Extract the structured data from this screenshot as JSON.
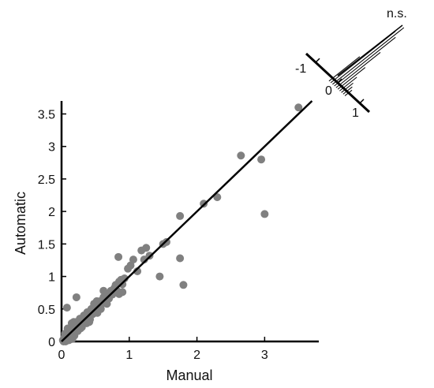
{
  "chart_data": {
    "type": "scatter",
    "title": "",
    "xlabel": "Manual",
    "ylabel": "Automatic",
    "xlim": [
      0,
      3.8
    ],
    "ylim": [
      0,
      3.7
    ],
    "xticks": [
      0,
      1,
      2,
      3
    ],
    "xtick_labels": [
      "0",
      "1",
      "2",
      "3"
    ],
    "yticks": [
      0,
      0.5,
      1,
      1.5,
      2,
      2.5,
      3,
      3.5
    ],
    "ytick_labels": [
      "0",
      "0.5",
      "1",
      "1.5",
      "2",
      "2.5",
      "3",
      "3.5"
    ],
    "grid": false,
    "point_color": "#808080",
    "line_color": "#000000",
    "fit_line": {
      "x": [
        0,
        3.7
      ],
      "y": [
        0,
        3.7
      ]
    },
    "points": [
      [
        0.02,
        0.02
      ],
      [
        0.04,
        0.06
      ],
      [
        0.06,
        0.03
      ],
      [
        0.05,
        0.12
      ],
      [
        0.08,
        0.08
      ],
      [
        0.1,
        0.15
      ],
      [
        0.12,
        0.05
      ],
      [
        0.09,
        0.2
      ],
      [
        0.14,
        0.12
      ],
      [
        0.15,
        0.28
      ],
      [
        0.17,
        0.18
      ],
      [
        0.19,
        0.09
      ],
      [
        0.2,
        0.22
      ],
      [
        0.22,
        0.3
      ],
      [
        0.24,
        0.16
      ],
      [
        0.25,
        0.25
      ],
      [
        0.27,
        0.35
      ],
      [
        0.28,
        0.2
      ],
      [
        0.3,
        0.32
      ],
      [
        0.32,
        0.27
      ],
      [
        0.33,
        0.4
      ],
      [
        0.35,
        0.33
      ],
      [
        0.37,
        0.28
      ],
      [
        0.38,
        0.45
      ],
      [
        0.4,
        0.38
      ],
      [
        0.42,
        0.34
      ],
      [
        0.44,
        0.5
      ],
      [
        0.46,
        0.42
      ],
      [
        0.48,
        0.58
      ],
      [
        0.5,
        0.47
      ],
      [
        0.52,
        0.55
      ],
      [
        0.55,
        0.52
      ],
      [
        0.57,
        0.62
      ],
      [
        0.6,
        0.58
      ],
      [
        0.62,
        0.68
      ],
      [
        0.65,
        0.63
      ],
      [
        0.68,
        0.72
      ],
      [
        0.7,
        0.66
      ],
      [
        0.73,
        0.78
      ],
      [
        0.75,
        0.74
      ],
      [
        0.78,
        0.82
      ],
      [
        0.8,
        0.87
      ],
      [
        0.82,
        0.78
      ],
      [
        0.85,
        0.92
      ],
      [
        0.88,
        0.95
      ],
      [
        0.9,
        0.88
      ],
      [
        0.93,
        0.97
      ],
      [
        0.08,
        0.52
      ],
      [
        0.22,
        0.68
      ],
      [
        0.52,
        0.62
      ],
      [
        0.62,
        0.78
      ],
      [
        0.75,
        0.72
      ],
      [
        0.85,
        0.73
      ],
      [
        0.9,
        0.76
      ],
      [
        0.84,
        1.3
      ],
      [
        0.98,
        1.12
      ],
      [
        1.02,
        1.17
      ],
      [
        1.06,
        1.26
      ],
      [
        1.12,
        1.08
      ],
      [
        1.18,
        1.4
      ],
      [
        1.25,
        1.44
      ],
      [
        1.22,
        1.26
      ],
      [
        1.3,
        1.32
      ],
      [
        1.45,
        1.0
      ],
      [
        1.5,
        1.5
      ],
      [
        1.55,
        1.53
      ],
      [
        1.75,
        1.93
      ],
      [
        1.75,
        1.28
      ],
      [
        1.8,
        0.87
      ],
      [
        2.1,
        2.12
      ],
      [
        2.3,
        2.22
      ],
      [
        2.65,
        2.86
      ],
      [
        2.95,
        2.8
      ],
      [
        3.0,
        1.96
      ],
      [
        3.5,
        3.6
      ],
      [
        0.03,
        0.0
      ],
      [
        0.06,
        0.0
      ],
      [
        0.11,
        0.02
      ],
      [
        0.16,
        0.04
      ],
      [
        0.18,
        0.3
      ],
      [
        0.26,
        0.29
      ],
      [
        0.3,
        0.22
      ],
      [
        0.34,
        0.38
      ],
      [
        0.41,
        0.3
      ],
      [
        0.44,
        0.42
      ],
      [
        0.47,
        0.48
      ],
      [
        0.53,
        0.44
      ],
      [
        0.58,
        0.5
      ],
      [
        0.63,
        0.6
      ],
      [
        0.67,
        0.58
      ]
    ],
    "inset": {
      "label": "n.s.",
      "tick_labels": [
        "-1",
        "0",
        "1"
      ],
      "histogram": [
        0.4,
        0.9,
        1.0,
        0.85,
        0.6,
        0.35,
        0.2,
        0.12,
        0.08,
        0.05
      ]
    }
  }
}
